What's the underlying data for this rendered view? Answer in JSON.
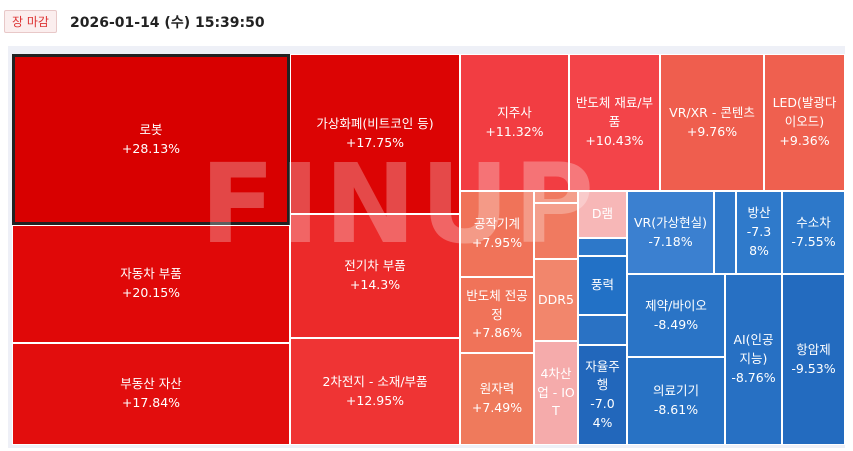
{
  "header": {
    "badge": "장 마감",
    "datetime": "2026-01-14 (수) 15:39:50"
  },
  "watermark": "FINUP",
  "tiles": [
    {
      "name": "로봇",
      "change": "+28.13%",
      "color": "#d80000"
    },
    {
      "name": "가상화폐(비트코인 등)",
      "change": "+17.75%",
      "color": "#dc0404"
    },
    {
      "name": "자동차 부품",
      "change": "+20.15%",
      "color": "#e00808"
    },
    {
      "name": "부동산 자산",
      "change": "+17.84%",
      "color": "#e20d0d"
    },
    {
      "name": "전기차 부품",
      "change": "+14.3%",
      "color": "#ec2a2a"
    },
    {
      "name": "2차전지 - 소재/부품",
      "change": "+12.95%",
      "color": "#ef3434"
    },
    {
      "name": "지주사",
      "change": "+11.32%",
      "color": "#f23d42"
    },
    {
      "name": "반도체 재료/부품",
      "change": "+10.43%",
      "color": "#f34449"
    },
    {
      "name": "VR/XR - 콘텐츠",
      "change": "+9.76%",
      "color": "#ef5e4e"
    },
    {
      "name": "LED(발광다이오드)",
      "change": "+9.36%",
      "color": "#ef604f"
    },
    {
      "name": "공작기계",
      "change": "+7.95%",
      "color": "#f07359"
    },
    {
      "name": "반도체 전공정",
      "change": "+7.86%",
      "color": "#f07359"
    },
    {
      "name": "원자력",
      "change": "+7.49%",
      "color": "#ef7a5c"
    },
    {
      "name": "DDR5",
      "change": null,
      "color": "#f2866c"
    },
    {
      "name": "4차산업 - IOT",
      "change": null,
      "color": "#f5abab"
    },
    {
      "name": "D램",
      "change": null,
      "color": "#f7b7b7"
    },
    {
      "name": "풍력",
      "change": null,
      "color": "#2271c6"
    },
    {
      "name": "자율주행",
      "change": "-7.04%",
      "color": "#2267bb"
    },
    {
      "name": "VR(가상현실)",
      "change": "-7.18%",
      "color": "#3b80d0"
    },
    {
      "name": "방산",
      "change": "-7.38%",
      "color": "#2f7acb"
    },
    {
      "name": "수소차",
      "change": "-7.55%",
      "color": "#2d78c9"
    },
    {
      "name": "제약/바이오",
      "change": "-8.49%",
      "color": "#2a74c6"
    },
    {
      "name": "의료기기",
      "change": "-8.61%",
      "color": "#2872c4"
    },
    {
      "name": "AI(인공지능)",
      "change": "-8.76%",
      "color": "#2770c3"
    },
    {
      "name": "항암제",
      "change": "-9.53%",
      "color": "#236bbf"
    }
  ]
}
